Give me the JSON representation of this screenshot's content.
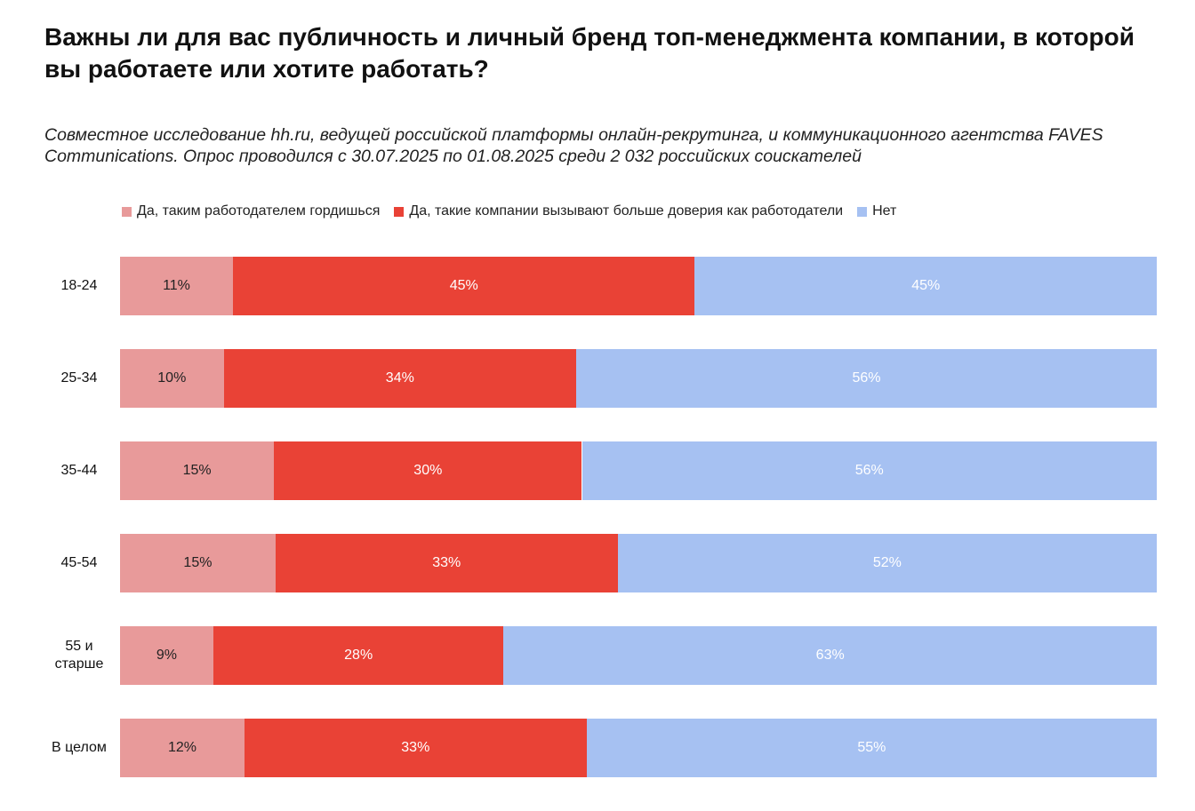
{
  "chart_data": {
    "type": "bar",
    "orientation": "horizontal",
    "stacked": "percent",
    "title": "Важны ли для вас публичность и личный бренд топ-менеджмента компании, в которой вы работаете или хотите работать?",
    "subtitle": "Совместное исследование hh.ru, ведущей российской платформы онлайн-рекрутинга, и коммуникационного агентства FAVES Communications. Опрос проводился с 30.07.2025 по 01.08.2025 среди 2 032 российских соискателей",
    "categories": [
      "18-24",
      "25-34",
      "35-44",
      "45-54",
      "55 и старше",
      "В целом"
    ],
    "series": [
      {
        "name": "Да, таким работодателем гордишься",
        "color": "#e89a9a",
        "label_color": "#222222",
        "values": [
          11,
          10,
          15,
          15,
          9,
          12
        ],
        "value_labels": [
          "11%",
          "10%",
          "15%",
          "15%",
          "9%",
          "12%"
        ]
      },
      {
        "name": "Да, такие компании вызывают больше доверия как работодатели",
        "color": "#e94236",
        "label_color": "#ffffff",
        "values": [
          45,
          34,
          30,
          33,
          28,
          33
        ],
        "value_labels": [
          "45%",
          "34%",
          "30%",
          "33%",
          "28%",
          "33%"
        ]
      },
      {
        "name": "Нет",
        "color": "#a6c1f2",
        "label_color": "#ffffff",
        "values": [
          45,
          56,
          56,
          52,
          63,
          55
        ],
        "value_labels": [
          "45%",
          "56%",
          "56%",
          "52%",
          "63%",
          "55%"
        ]
      }
    ]
  }
}
